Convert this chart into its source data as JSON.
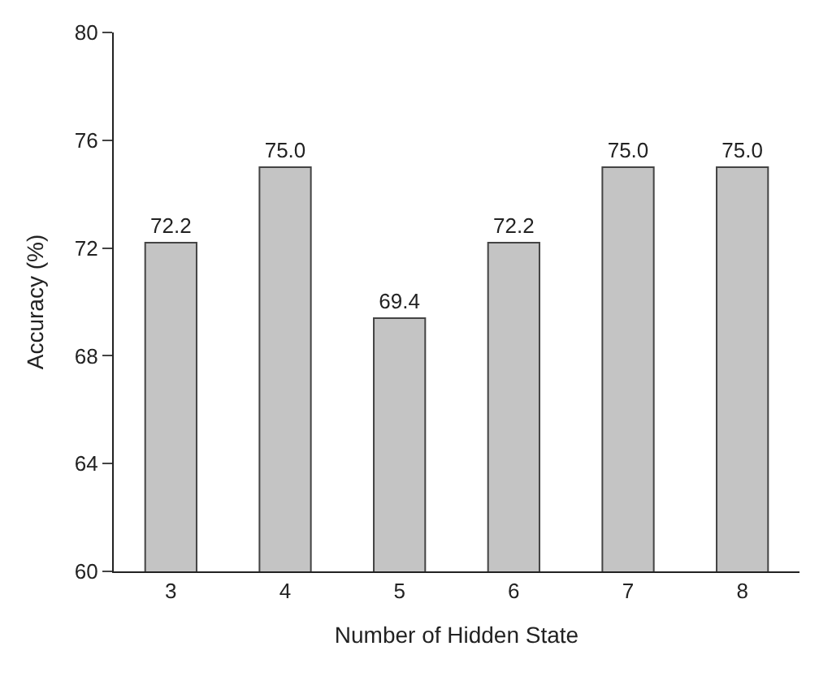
{
  "chart_data": {
    "type": "bar",
    "categories": [
      "3",
      "4",
      "5",
      "6",
      "7",
      "8"
    ],
    "values": [
      72.2,
      75.0,
      69.4,
      72.2,
      75.0,
      75.0
    ],
    "value_labels": [
      "72.2",
      "75.0",
      "69.4",
      "72.2",
      "75.0",
      "75.0"
    ],
    "color": "#c4c4c4",
    "xlabel": "Number of Hidden State",
    "ylabel": "Accuracy (%)",
    "ylim": [
      60,
      80
    ],
    "yticks": [
      60,
      64,
      68,
      72,
      76,
      80
    ],
    "legend": false
  }
}
